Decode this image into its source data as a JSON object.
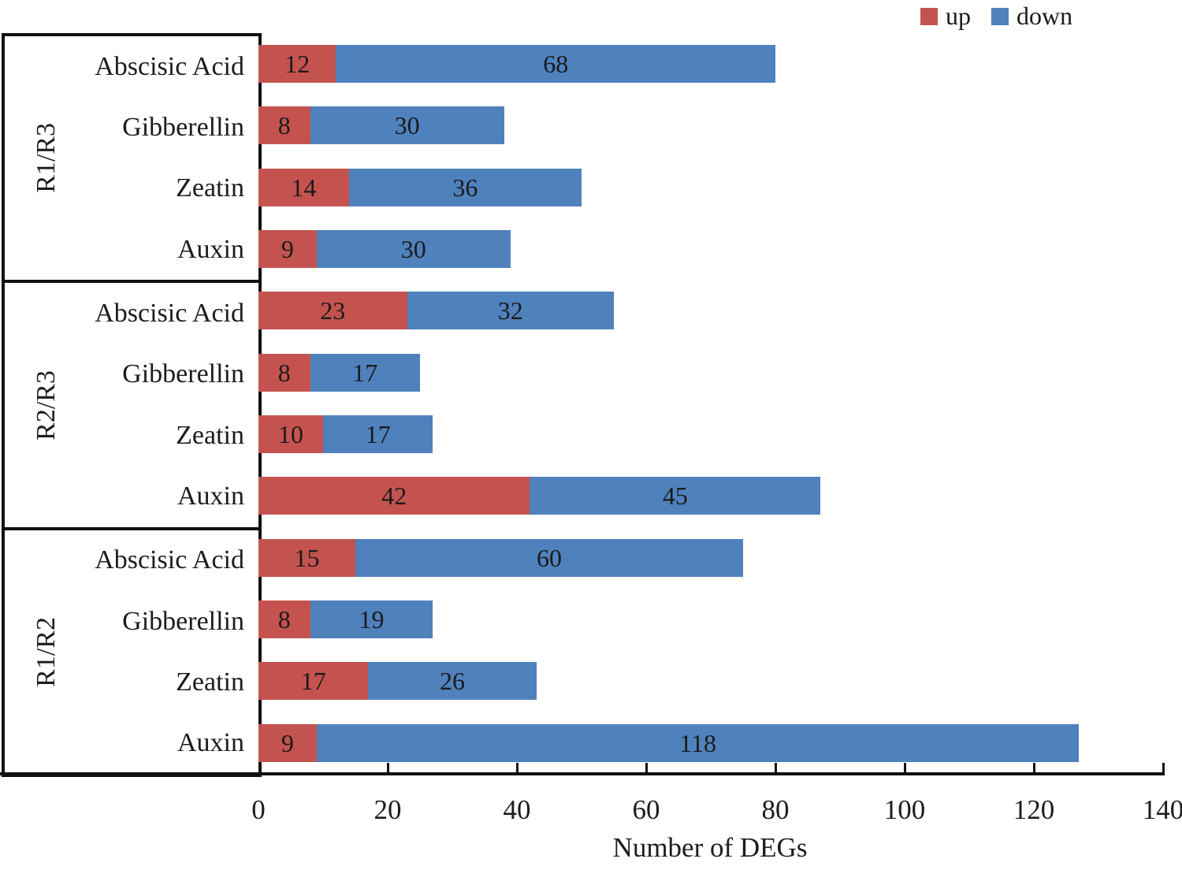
{
  "chart_data": {
    "type": "bar",
    "orientation": "horizontal",
    "stacked": true,
    "title": "",
    "xlabel": "Number of DEGs",
    "ylabel": "",
    "xlim": [
      0,
      140
    ],
    "xticks": [
      0,
      20,
      40,
      60,
      80,
      100,
      120,
      140
    ],
    "grid": false,
    "legend_position": "top-right",
    "legend": [
      {
        "name": "up",
        "color": "#C4534F"
      },
      {
        "name": "down",
        "color": "#4F81BD"
      }
    ],
    "groups": [
      {
        "name": "R1/R3",
        "rows": [
          {
            "label": "Abscisic Acid",
            "up": 12,
            "down": 68
          },
          {
            "label": "Gibberellin",
            "up": 8,
            "down": 30
          },
          {
            "label": "Zeatin",
            "up": 14,
            "down": 36
          },
          {
            "label": "Auxin",
            "up": 9,
            "down": 30
          }
        ]
      },
      {
        "name": "R2/R3",
        "rows": [
          {
            "label": "Abscisic Acid",
            "up": 23,
            "down": 32
          },
          {
            "label": "Gibberellin",
            "up": 8,
            "down": 17
          },
          {
            "label": "Zeatin",
            "up": 10,
            "down": 17
          },
          {
            "label": "Auxin",
            "up": 42,
            "down": 45
          }
        ]
      },
      {
        "name": "R1/R2",
        "rows": [
          {
            "label": "Abscisic Acid",
            "up": 15,
            "down": 60
          },
          {
            "label": "Gibberellin",
            "up": 8,
            "down": 19
          },
          {
            "label": "Zeatin",
            "up": 17,
            "down": 26
          },
          {
            "label": "Auxin",
            "up": 9,
            "down": 118
          }
        ]
      }
    ]
  }
}
